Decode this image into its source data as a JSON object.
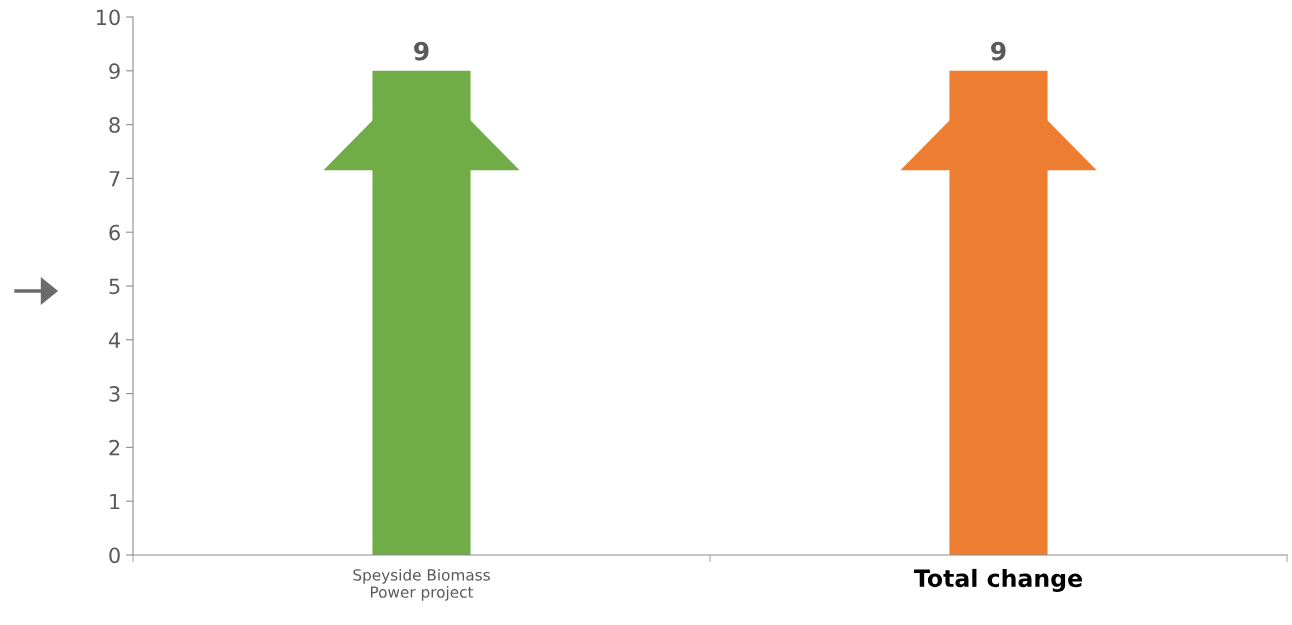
{
  "chart_data": {
    "type": "bar",
    "categories": [
      "Speyside Biomass\nPower project",
      "Total change"
    ],
    "colors": [
      "#70ad47",
      "#ed7d31"
    ],
    "values": [
      9,
      9
    ],
    "data_labels": true,
    "ylim": [
      0,
      10
    ],
    "yticks": [
      0,
      1,
      2,
      3,
      4,
      5,
      6,
      7,
      8,
      9,
      10
    ],
    "grid": false,
    "legend": false
  }
}
